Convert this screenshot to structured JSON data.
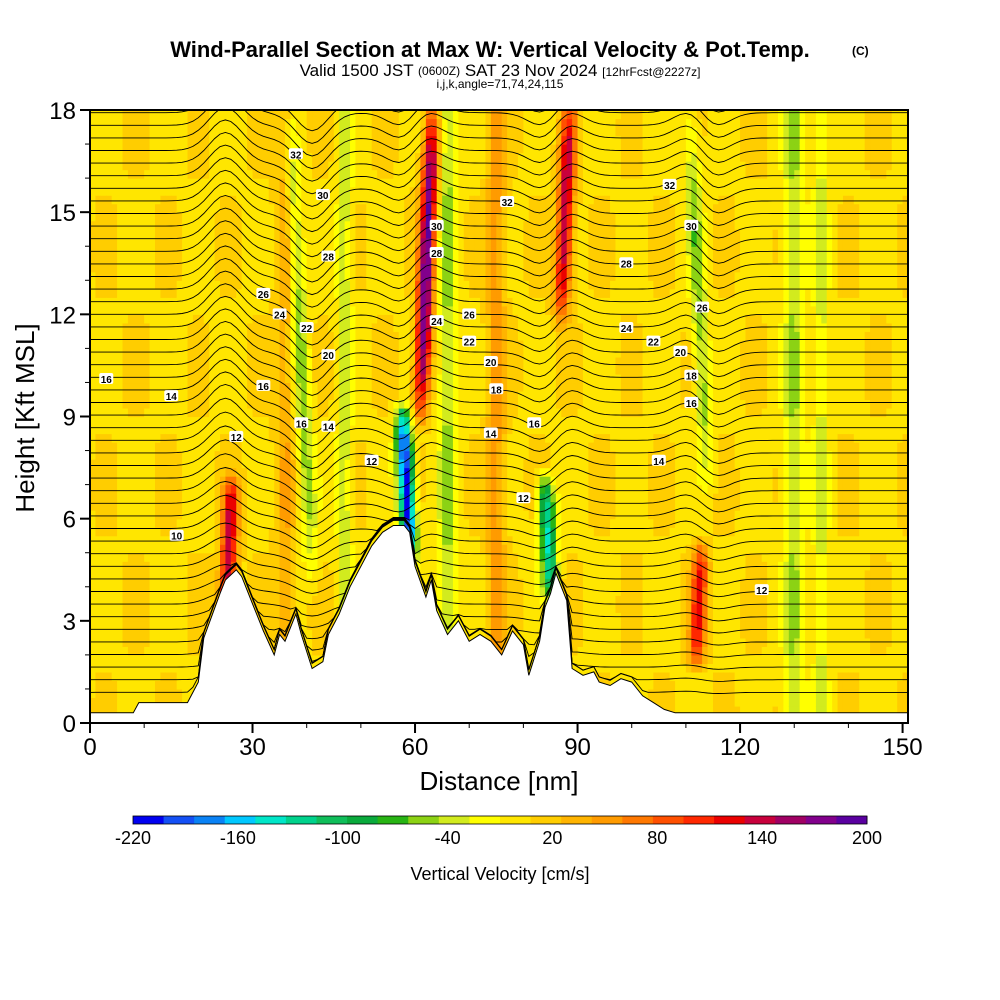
{
  "chart_data": {
    "type": "heatmap",
    "title": "Wind-Parallel Section at Max W: Vertical Velocity & Pot.Temp.",
    "title_mark": "(C)",
    "subtitle": {
      "valid": "Valid 1500 JST",
      "utc": "(0600Z)",
      "date": "SAT 23 Nov 2024",
      "fcst": "[12hrFcst@2227z]"
    },
    "section_info": "i,j,k,angle=71,74,24,115",
    "xlabel": "Distance [nm]",
    "ylabel": "Height [Kft MSL]",
    "xlim": [
      0,
      151
    ],
    "ylim": [
      0,
      18
    ],
    "xticks": [
      0,
      30,
      60,
      90,
      120,
      150
    ],
    "yticks": [
      0,
      3,
      6,
      9,
      12,
      15,
      18
    ],
    "grid": false,
    "colorbar": {
      "title": "Vertical Velocity [cm/s]",
      "ticks": [
        -220,
        -160,
        -100,
        -40,
        20,
        80,
        140,
        200
      ],
      "bounds": [
        -220,
        200
      ],
      "colors": [
        "#0000f0",
        "#1450f5",
        "#0a82f5",
        "#00c8ff",
        "#00e6c8",
        "#00d28c",
        "#10be5a",
        "#0aaa3c",
        "#28b414",
        "#8cd214",
        "#d2eb1e",
        "#ffff00",
        "#ffe600",
        "#ffcd00",
        "#ffb400",
        "#ff9b00",
        "#ff7800",
        "#ff5000",
        "#ff2800",
        "#eb0000",
        "#c8003c",
        "#a00064",
        "#82008c",
        "#5a00a0"
      ]
    },
    "vertical_velocity_features": [
      {
        "x": 25,
        "type": "updraft",
        "peak": 140,
        "z_range": [
          2.5,
          7
        ]
      },
      {
        "x": 41,
        "type": "downdraft",
        "peak": -60,
        "z_range": [
          4,
          18
        ]
      },
      {
        "x": 61,
        "type": "updraft",
        "peak": 180,
        "z_range": [
          9,
          18
        ]
      },
      {
        "x": 59,
        "type": "downdraft",
        "peak": -220,
        "z_range": [
          5,
          9
        ]
      },
      {
        "x": 87,
        "type": "updraft",
        "peak": 140,
        "z_range": [
          12,
          18
        ]
      },
      {
        "x": 85,
        "type": "downdraft",
        "peak": -140,
        "z_range": [
          4,
          7
        ]
      },
      {
        "x": 112,
        "type": "updraft",
        "peak": 110,
        "z_range": [
          2,
          5
        ]
      },
      {
        "x": 114,
        "type": "downdraft",
        "peak": -60,
        "z_range": [
          7,
          18
        ]
      }
    ],
    "terrain": {
      "x": [
        0,
        8,
        9,
        18,
        20,
        21,
        24,
        25,
        27,
        28,
        30,
        32,
        34,
        35,
        36,
        38,
        39,
        41,
        43,
        44,
        46,
        48,
        50,
        52,
        54,
        56,
        58,
        59,
        60,
        62,
        63,
        64,
        66,
        68,
        70,
        72,
        74,
        76,
        78,
        80,
        81,
        83,
        84,
        85,
        86,
        88,
        89,
        91,
        93,
        94,
        96,
        98,
        100,
        102,
        104,
        106,
        108,
        110,
        151
      ],
      "height": [
        0.3,
        0.3,
        0.6,
        0.6,
        1.2,
        2.5,
        3.8,
        4.2,
        4.5,
        4.3,
        3.5,
        2.7,
        2.0,
        2.6,
        2.4,
        3.2,
        2.6,
        1.6,
        1.8,
        2.6,
        3.2,
        4.0,
        4.6,
        5.2,
        5.6,
        5.8,
        5.8,
        5.6,
        4.6,
        3.7,
        4.2,
        3.3,
        2.6,
        3.0,
        2.4,
        2.6,
        2.4,
        2.0,
        2.7,
        2.3,
        1.4,
        2.4,
        3.4,
        3.8,
        4.4,
        3.6,
        1.6,
        1.4,
        1.5,
        1.2,
        1.1,
        1.3,
        1.2,
        0.8,
        0.6,
        0.4,
        0.3,
        0.3,
        0.3
      ]
    },
    "theta_contour_labels": [
      {
        "text": "10",
        "x": 16,
        "y": 5.5
      },
      {
        "text": "12",
        "x": 27,
        "y": 8.4
      },
      {
        "text": "12",
        "x": 52,
        "y": 7.7
      },
      {
        "text": "12",
        "x": 80,
        "y": 6.6
      },
      {
        "text": "12",
        "x": 124,
        "y": 3.9
      },
      {
        "text": "14",
        "x": 15,
        "y": 9.6
      },
      {
        "text": "14",
        "x": 44,
        "y": 8.7
      },
      {
        "text": "14",
        "x": 74,
        "y": 8.5
      },
      {
        "text": "14",
        "x": 105,
        "y": 7.7
      },
      {
        "text": "16",
        "x": 3,
        "y": 10.1
      },
      {
        "text": "16",
        "x": 32,
        "y": 9.9
      },
      {
        "text": "16",
        "x": 39,
        "y": 8.8
      },
      {
        "text": "16",
        "x": 82,
        "y": 8.8
      },
      {
        "text": "16",
        "x": 111,
        "y": 9.4
      },
      {
        "text": "18",
        "x": 75,
        "y": 9.8
      },
      {
        "text": "18",
        "x": 111,
        "y": 10.2
      },
      {
        "text": "20",
        "x": 44,
        "y": 10.8
      },
      {
        "text": "20",
        "x": 74,
        "y": 10.6
      },
      {
        "text": "20",
        "x": 109,
        "y": 10.9
      },
      {
        "text": "22",
        "x": 40,
        "y": 11.6
      },
      {
        "text": "22",
        "x": 70,
        "y": 11.2
      },
      {
        "text": "22",
        "x": 104,
        "y": 11.2
      },
      {
        "text": "24",
        "x": 35,
        "y": 12.0
      },
      {
        "text": "24",
        "x": 64,
        "y": 11.8
      },
      {
        "text": "24",
        "x": 99,
        "y": 11.6
      },
      {
        "text": "26",
        "x": 32,
        "y": 12.6
      },
      {
        "text": "26",
        "x": 70,
        "y": 12.0
      },
      {
        "text": "26",
        "x": 113,
        "y": 12.2
      },
      {
        "text": "28",
        "x": 44,
        "y": 13.7
      },
      {
        "text": "28",
        "x": 64,
        "y": 13.8
      },
      {
        "text": "28",
        "x": 99,
        "y": 13.5
      },
      {
        "text": "30",
        "x": 43,
        "y": 15.5
      },
      {
        "text": "30",
        "x": 64,
        "y": 14.6
      },
      {
        "text": "30",
        "x": 111,
        "y": 14.6
      },
      {
        "text": "32",
        "x": 38,
        "y": 16.7
      },
      {
        "text": "32",
        "x": 77,
        "y": 15.3
      },
      {
        "text": "32",
        "x": 107,
        "y": 15.8
      }
    ]
  }
}
